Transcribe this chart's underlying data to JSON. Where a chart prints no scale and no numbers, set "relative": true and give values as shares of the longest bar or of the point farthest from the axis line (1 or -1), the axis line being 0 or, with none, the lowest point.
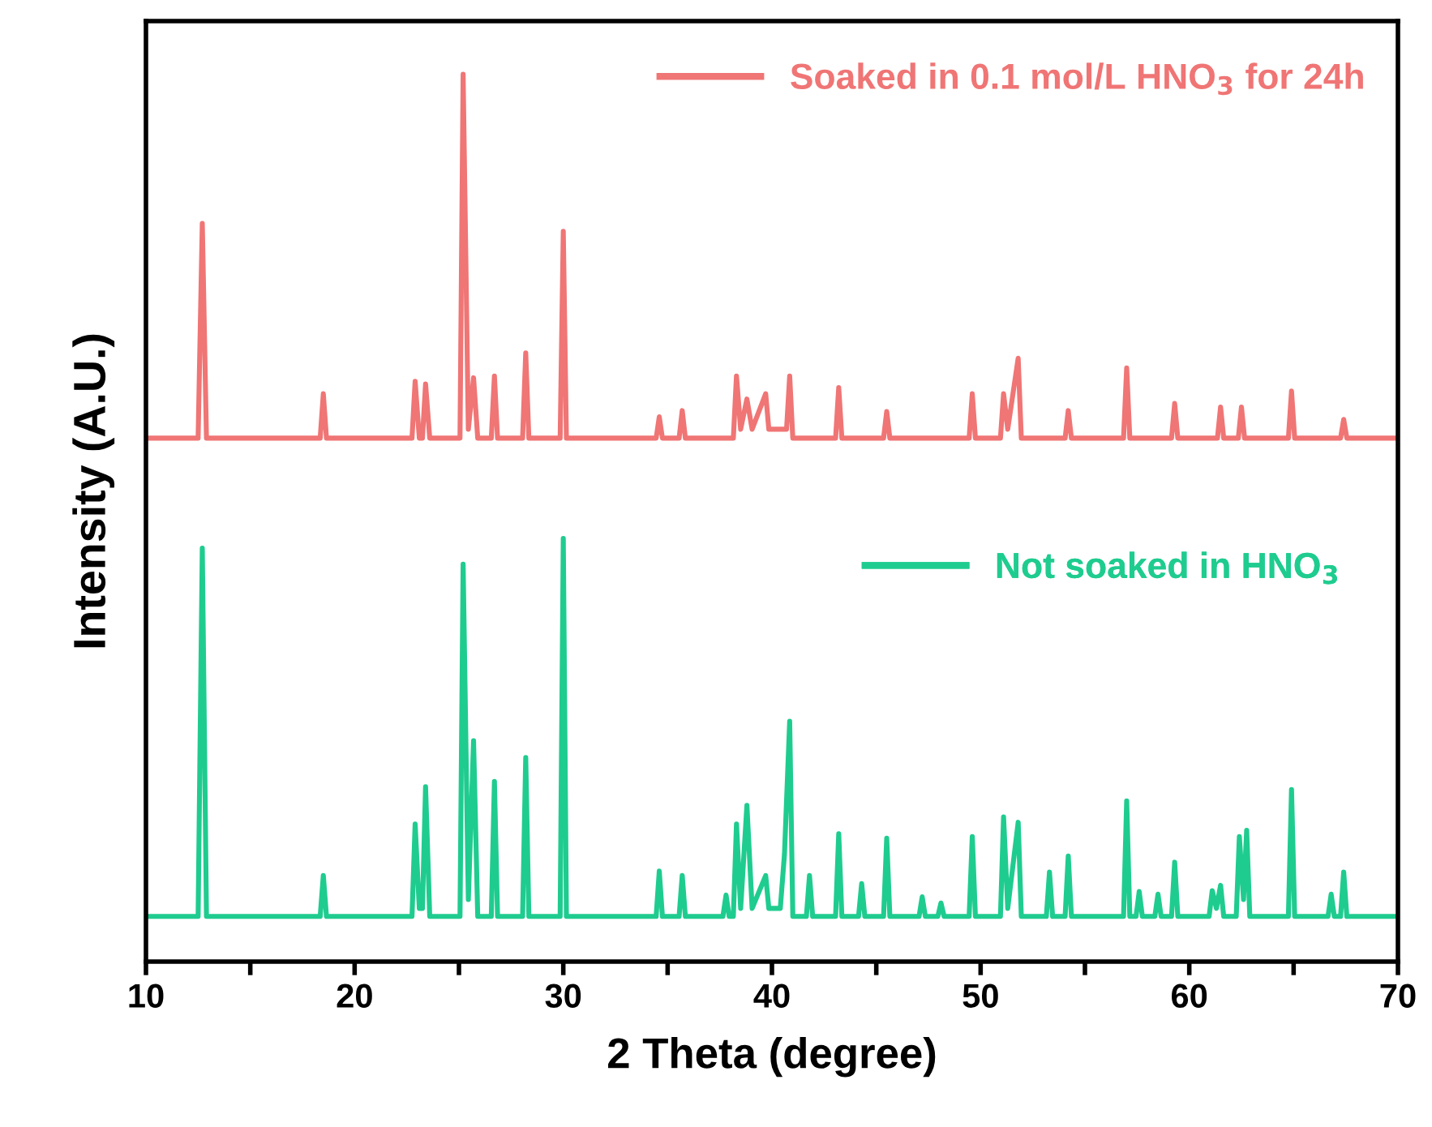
{
  "chart_data": {
    "type": "line",
    "relative": true,
    "xlabel": "2 Theta (degree)",
    "ylabel": "Intensity (A.U.)",
    "xlim": [
      10,
      70
    ],
    "xticks": [
      10,
      {
        "value": 15,
        "label": null
      },
      20,
      {
        "value": 25,
        "label": null
      },
      30,
      {
        "value": 35,
        "label": null
      },
      40,
      {
        "value": 45,
        "label": null
      },
      50,
      {
        "value": 55,
        "label": null
      },
      60,
      {
        "value": 65,
        "label": null
      },
      70
    ],
    "tick_labels": "x",
    "grid": false,
    "legend": "top right",
    "line_style": "solid",
    "marker": "none",
    "series": [
      {
        "name": "Soaked in 0.1 mol/L HNO$_{3}$ for 24h",
        "color": "#f07575",
        "x": [
          10,
          12.5,
          12.7,
          12.9,
          18.35,
          18.5,
          18.65,
          22.75,
          22.9,
          23.1,
          23.25,
          23.4,
          23.6,
          25.05,
          25.2,
          25.45,
          25.7,
          25.9,
          26.55,
          26.7,
          26.85,
          28.05,
          28.2,
          28.35,
          29.85,
          30.0,
          30.15,
          34.45,
          34.6,
          34.75,
          35.55,
          35.7,
          35.85,
          38.15,
          38.3,
          38.5,
          38.8,
          39.05,
          39.7,
          39.85,
          40.7,
          40.85,
          41.0,
          43.05,
          43.2,
          43.35,
          45.35,
          45.5,
          45.65,
          49.45,
          49.6,
          49.75,
          50.95,
          51.1,
          51.3,
          51.8,
          51.95,
          54.05,
          54.2,
          54.35,
          56.85,
          57.0,
          57.15,
          59.15,
          59.3,
          59.45,
          61.35,
          61.5,
          61.65,
          62.35,
          62.5,
          62.65,
          64.75,
          64.9,
          65.05,
          67.25,
          67.4,
          67.55,
          70
        ],
        "values": [
          0.59,
          0.59,
          0.832,
          0.59,
          0.59,
          0.64,
          0.59,
          0.59,
          0.654,
          0.59,
          0.59,
          0.651,
          0.59,
          0.59,
          1.0,
          0.6,
          0.658,
          0.59,
          0.59,
          0.66,
          0.59,
          0.59,
          0.686,
          0.59,
          0.59,
          0.823,
          0.59,
          0.59,
          0.614,
          0.59,
          0.59,
          0.621,
          0.59,
          0.59,
          0.66,
          0.6,
          0.634,
          0.6,
          0.64,
          0.6,
          0.6,
          0.66,
          0.59,
          0.59,
          0.647,
          0.59,
          0.59,
          0.62,
          0.59,
          0.59,
          0.64,
          0.59,
          0.59,
          0.64,
          0.6,
          0.68,
          0.59,
          0.59,
          0.621,
          0.59,
          0.59,
          0.669,
          0.59,
          0.59,
          0.629,
          0.59,
          0.59,
          0.625,
          0.59,
          0.59,
          0.625,
          0.59,
          0.59,
          0.643,
          0.59,
          0.59,
          0.611,
          0.59,
          0.59
        ]
      },
      {
        "name": "Not soaked in HNO$_{3}$",
        "color": "#1fcc8f",
        "x": [
          10,
          12.5,
          12.7,
          12.9,
          18.35,
          18.5,
          18.65,
          22.75,
          22.9,
          23.1,
          23.25,
          23.4,
          23.6,
          25.05,
          25.2,
          25.45,
          25.7,
          25.9,
          26.55,
          26.7,
          26.85,
          28.05,
          28.2,
          28.35,
          29.85,
          30.0,
          30.15,
          34.45,
          34.6,
          34.75,
          35.55,
          35.7,
          35.85,
          37.65,
          37.8,
          37.95,
          38.15,
          38.3,
          38.5,
          38.8,
          39.05,
          39.7,
          39.85,
          40.4,
          40.6,
          40.85,
          41.0,
          41.65,
          41.8,
          41.95,
          43.05,
          43.2,
          43.35,
          44.15,
          44.3,
          44.45,
          45.35,
          45.5,
          45.65,
          47.05,
          47.2,
          47.35,
          47.95,
          48.1,
          48.25,
          49.45,
          49.6,
          49.75,
          50.95,
          51.1,
          51.3,
          51.8,
          51.95,
          53.15,
          53.3,
          53.45,
          54.05,
          54.2,
          54.35,
          56.85,
          57.0,
          57.15,
          57.45,
          57.6,
          57.75,
          58.35,
          58.5,
          58.65,
          59.15,
          59.3,
          59.45,
          60.95,
          61.1,
          61.3,
          61.5,
          61.65,
          62.25,
          62.4,
          62.6,
          62.75,
          62.9,
          64.75,
          64.9,
          65.05,
          66.65,
          66.8,
          66.95,
          67.25,
          67.4,
          67.55,
          70
        ],
        "values": [
          0.051,
          0.051,
          0.466,
          0.051,
          0.051,
          0.097,
          0.051,
          0.051,
          0.155,
          0.06,
          0.06,
          0.197,
          0.051,
          0.051,
          0.448,
          0.07,
          0.249,
          0.051,
          0.051,
          0.203,
          0.051,
          0.051,
          0.23,
          0.051,
          0.051,
          0.477,
          0.051,
          0.051,
          0.102,
          0.051,
          0.051,
          0.097,
          0.051,
          0.051,
          0.075,
          0.051,
          0.051,
          0.155,
          0.06,
          0.176,
          0.06,
          0.097,
          0.06,
          0.06,
          0.121,
          0.271,
          0.051,
          0.051,
          0.097,
          0.051,
          0.051,
          0.144,
          0.051,
          0.051,
          0.088,
          0.051,
          0.051,
          0.139,
          0.051,
          0.051,
          0.073,
          0.051,
          0.051,
          0.066,
          0.051,
          0.051,
          0.141,
          0.051,
          0.051,
          0.163,
          0.06,
          0.157,
          0.051,
          0.051,
          0.101,
          0.051,
          0.051,
          0.119,
          0.051,
          0.051,
          0.181,
          0.051,
          0.051,
          0.079,
          0.051,
          0.051,
          0.076,
          0.051,
          0.051,
          0.112,
          0.051,
          0.051,
          0.08,
          0.06,
          0.086,
          0.051,
          0.051,
          0.141,
          0.07,
          0.148,
          0.051,
          0.051,
          0.194,
          0.051,
          0.051,
          0.076,
          0.051,
          0.051,
          0.101,
          0.051,
          0.051
        ]
      }
    ]
  }
}
